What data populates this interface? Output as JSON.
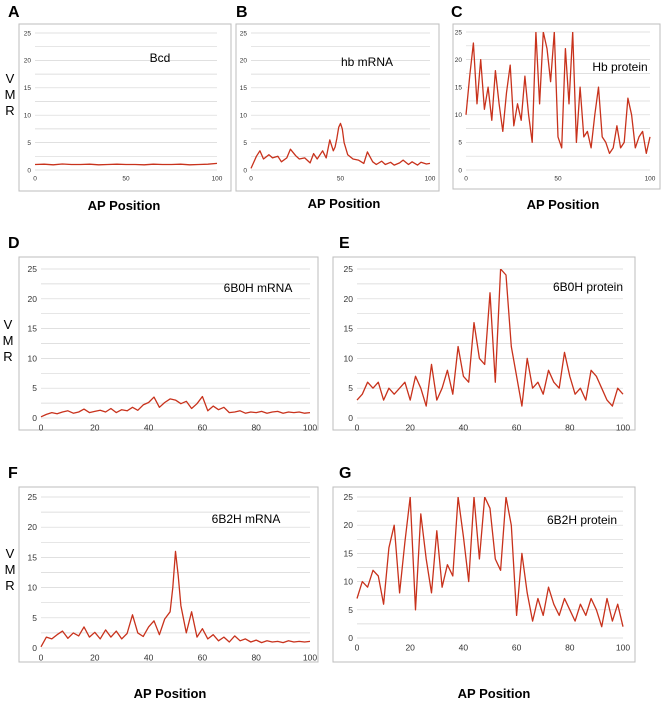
{
  "figure": {
    "ylabel_letters": [
      "V",
      "M",
      "R"
    ],
    "xlabel": "AP Position"
  },
  "chart_data": [
    {
      "id": "A",
      "type": "line",
      "title": "Bcd",
      "ylim": [
        0,
        25
      ],
      "yticks": [
        0,
        5,
        10,
        15,
        20,
        25
      ],
      "xticks": [
        0,
        50,
        100
      ],
      "xlim": [
        0,
        100
      ],
      "color": "#c8321c",
      "series": [
        {
          "name": "Bcd",
          "x": [
            0,
            5,
            10,
            15,
            20,
            25,
            30,
            35,
            40,
            45,
            50,
            55,
            60,
            65,
            70,
            75,
            80,
            85,
            90,
            95,
            100
          ],
          "y": [
            1.0,
            1.05,
            0.95,
            1.1,
            1.0,
            1.0,
            1.05,
            0.95,
            1.0,
            1.05,
            1.0,
            1.0,
            0.95,
            1.05,
            1.0,
            1.0,
            1.05,
            0.95,
            1.0,
            1.05,
            1.2
          ]
        }
      ]
    },
    {
      "id": "B",
      "type": "line",
      "title": "hb mRNA",
      "ylim": [
        0,
        25
      ],
      "yticks": [
        0,
        5,
        10,
        15,
        20,
        25
      ],
      "xticks": [
        0,
        50,
        100
      ],
      "xlim": [
        0,
        100
      ],
      "color": "#c8321c",
      "series": [
        {
          "name": "hb mRNA",
          "x": [
            0,
            3,
            5,
            7,
            10,
            12,
            15,
            17,
            20,
            22,
            25,
            27,
            30,
            33,
            35,
            37,
            40,
            42,
            44,
            46,
            47,
            48,
            49,
            50,
            51,
            52,
            54,
            57,
            60,
            63,
            65,
            68,
            70,
            73,
            75,
            78,
            80,
            83,
            85,
            88,
            90,
            93,
            95,
            98,
            100
          ],
          "y": [
            0.3,
            2.5,
            3.5,
            2.0,
            2.8,
            2.2,
            2.5,
            1.5,
            2.2,
            3.8,
            2.6,
            2.0,
            2.2,
            1.3,
            3.0,
            2.0,
            3.5,
            2.2,
            5.5,
            3.5,
            4.2,
            5.8,
            7.8,
            8.5,
            7.5,
            5.0,
            2.8,
            2.0,
            1.8,
            1.2,
            3.3,
            1.5,
            1.0,
            1.6,
            1.0,
            1.4,
            0.9,
            1.3,
            1.8,
            1.0,
            1.5,
            0.9,
            1.4,
            1.1,
            1.2
          ]
        }
      ]
    },
    {
      "id": "C",
      "type": "line",
      "title": "Hb protein",
      "ylim": [
        0,
        25
      ],
      "yticks": [
        0,
        5,
        10,
        15,
        20,
        25
      ],
      "xticks": [
        0,
        50,
        100
      ],
      "xlim": [
        0,
        100
      ],
      "color": "#c8321c",
      "series": [
        {
          "name": "Hb protein",
          "x": [
            0,
            2,
            4,
            6,
            8,
            10,
            12,
            14,
            16,
            18,
            20,
            22,
            24,
            26,
            28,
            30,
            32,
            34,
            36,
            38,
            40,
            42,
            44,
            46,
            48,
            50,
            52,
            54,
            56,
            58,
            60,
            62,
            64,
            66,
            68,
            70,
            72,
            74,
            76,
            78,
            80,
            82,
            84,
            86,
            88,
            90,
            92,
            94,
            96,
            98,
            100
          ],
          "y": [
            10,
            17,
            23,
            12,
            20,
            11,
            15,
            9,
            18,
            12,
            7,
            14,
            19,
            8,
            12,
            9,
            17,
            10,
            5,
            25,
            12,
            25,
            22,
            16,
            25,
            6,
            4,
            22,
            12,
            25,
            5,
            15,
            6,
            7,
            4,
            10,
            15,
            6,
            5,
            3,
            4,
            8,
            4,
            5,
            13,
            10,
            4,
            6,
            7,
            3,
            6
          ]
        }
      ]
    },
    {
      "id": "D",
      "type": "line",
      "title": "6B0H mRNA",
      "ylim": [
        0,
        25
      ],
      "yticks": [
        0,
        5,
        10,
        15,
        20,
        25
      ],
      "xticks": [
        0,
        20,
        40,
        60,
        80,
        100
      ],
      "xlim": [
        0,
        100
      ],
      "color": "#c8321c",
      "series": [
        {
          "name": "6B0H mRNA",
          "x": [
            0,
            2,
            4,
            6,
            8,
            10,
            12,
            14,
            16,
            18,
            20,
            22,
            24,
            26,
            28,
            30,
            32,
            34,
            36,
            38,
            40,
            42,
            44,
            46,
            48,
            50,
            52,
            54,
            56,
            58,
            60,
            62,
            64,
            66,
            68,
            70,
            72,
            74,
            76,
            78,
            80,
            82,
            84,
            86,
            88,
            90,
            92,
            94,
            96,
            98,
            100
          ],
          "y": [
            0.2,
            0.6,
            0.9,
            0.7,
            1.0,
            1.2,
            0.8,
            1.0,
            1.5,
            0.9,
            1.1,
            1.3,
            1.0,
            1.6,
            0.9,
            1.4,
            1.2,
            1.8,
            1.3,
            2.2,
            2.6,
            3.5,
            1.8,
            2.6,
            3.2,
            3.0,
            2.4,
            2.8,
            1.6,
            2.4,
            3.6,
            1.2,
            2.0,
            1.4,
            1.8,
            0.9,
            1.0,
            1.2,
            0.8,
            1.0,
            0.9,
            1.1,
            0.8,
            1.0,
            1.1,
            0.8,
            1.0,
            0.9,
            1.0,
            0.8,
            0.9
          ]
        }
      ]
    },
    {
      "id": "E",
      "type": "line",
      "title": "6B0H protein",
      "ylim": [
        0,
        25
      ],
      "yticks": [
        0,
        5,
        10,
        15,
        20,
        25
      ],
      "xticks": [
        0,
        20,
        40,
        60,
        80,
        100
      ],
      "xlim": [
        0,
        100
      ],
      "color": "#c8321c",
      "series": [
        {
          "name": "6B0H protein",
          "x": [
            0,
            2,
            4,
            6,
            8,
            10,
            12,
            14,
            16,
            18,
            20,
            22,
            24,
            26,
            28,
            30,
            32,
            34,
            36,
            38,
            40,
            42,
            44,
            46,
            48,
            50,
            52,
            54,
            56,
            58,
            60,
            62,
            64,
            66,
            68,
            70,
            72,
            74,
            76,
            78,
            80,
            82,
            84,
            86,
            88,
            90,
            92,
            94,
            96,
            98,
            100
          ],
          "y": [
            3,
            4,
            6,
            5,
            6,
            3,
            5,
            4,
            5,
            6,
            3,
            7,
            5,
            2,
            9,
            3,
            5,
            8,
            4,
            12,
            7,
            6,
            16,
            10,
            9,
            21,
            6,
            25,
            24,
            12,
            7,
            2,
            10,
            5,
            6,
            4,
            8,
            6,
            5,
            11,
            7,
            4,
            5,
            3,
            8,
            7,
            5,
            3,
            2,
            5,
            4
          ]
        }
      ]
    },
    {
      "id": "F",
      "type": "line",
      "title": "6B2H mRNA",
      "ylim": [
        0,
        25
      ],
      "yticks": [
        0,
        5,
        10,
        15,
        20,
        25
      ],
      "xticks": [
        0,
        20,
        40,
        60,
        80,
        100
      ],
      "xlim": [
        0,
        100
      ],
      "color": "#c8321c",
      "series": [
        {
          "name": "6B2H mRNA",
          "x": [
            0,
            2,
            4,
            6,
            8,
            10,
            12,
            14,
            16,
            18,
            20,
            22,
            24,
            26,
            28,
            30,
            32,
            34,
            36,
            38,
            40,
            42,
            44,
            46,
            48,
            49,
            50,
            51,
            52,
            54,
            56,
            58,
            60,
            62,
            64,
            66,
            68,
            70,
            72,
            74,
            76,
            78,
            80,
            82,
            84,
            86,
            88,
            90,
            92,
            94,
            96,
            98,
            100
          ],
          "y": [
            0.2,
            1.8,
            1.5,
            2.2,
            2.8,
            1.6,
            2.5,
            2.0,
            3.5,
            1.8,
            2.6,
            1.5,
            3.0,
            1.8,
            2.8,
            1.5,
            2.4,
            5.5,
            2.5,
            1.9,
            3.5,
            4.5,
            2.2,
            4.8,
            6.0,
            10.0,
            16.0,
            12.0,
            7.0,
            2.5,
            6.0,
            1.8,
            3.2,
            1.5,
            2.2,
            1.2,
            1.8,
            1.0,
            2.0,
            1.2,
            1.5,
            1.0,
            1.3,
            0.9,
            1.2,
            1.0,
            1.1,
            0.9,
            1.2,
            1.0,
            1.1,
            1.0,
            1.1
          ]
        }
      ]
    },
    {
      "id": "G",
      "type": "line",
      "title": "6B2H protein",
      "ylim": [
        0,
        25
      ],
      "yticks": [
        0,
        5,
        10,
        15,
        20,
        25
      ],
      "xticks": [
        0,
        20,
        40,
        60,
        80,
        100
      ],
      "xlim": [
        0,
        100
      ],
      "color": "#c8321c",
      "series": [
        {
          "name": "6B2H protein",
          "x": [
            0,
            2,
            4,
            6,
            8,
            10,
            12,
            14,
            16,
            18,
            20,
            22,
            24,
            26,
            28,
            30,
            32,
            34,
            36,
            38,
            40,
            42,
            44,
            46,
            48,
            50,
            52,
            54,
            56,
            58,
            60,
            62,
            64,
            66,
            68,
            70,
            72,
            74,
            76,
            78,
            80,
            82,
            84,
            86,
            88,
            90,
            92,
            94,
            96,
            98,
            100
          ],
          "y": [
            7,
            10,
            9,
            12,
            11,
            6,
            16,
            20,
            8,
            17,
            25,
            5,
            22,
            14,
            8,
            19,
            9,
            13,
            11,
            25,
            18,
            10,
            25,
            14,
            25,
            23,
            14,
            12,
            25,
            20,
            4,
            15,
            8,
            3,
            7,
            4,
            9,
            6,
            4,
            7,
            5,
            3,
            6,
            4,
            7,
            5,
            2,
            7,
            3,
            6,
            2
          ]
        }
      ]
    }
  ]
}
